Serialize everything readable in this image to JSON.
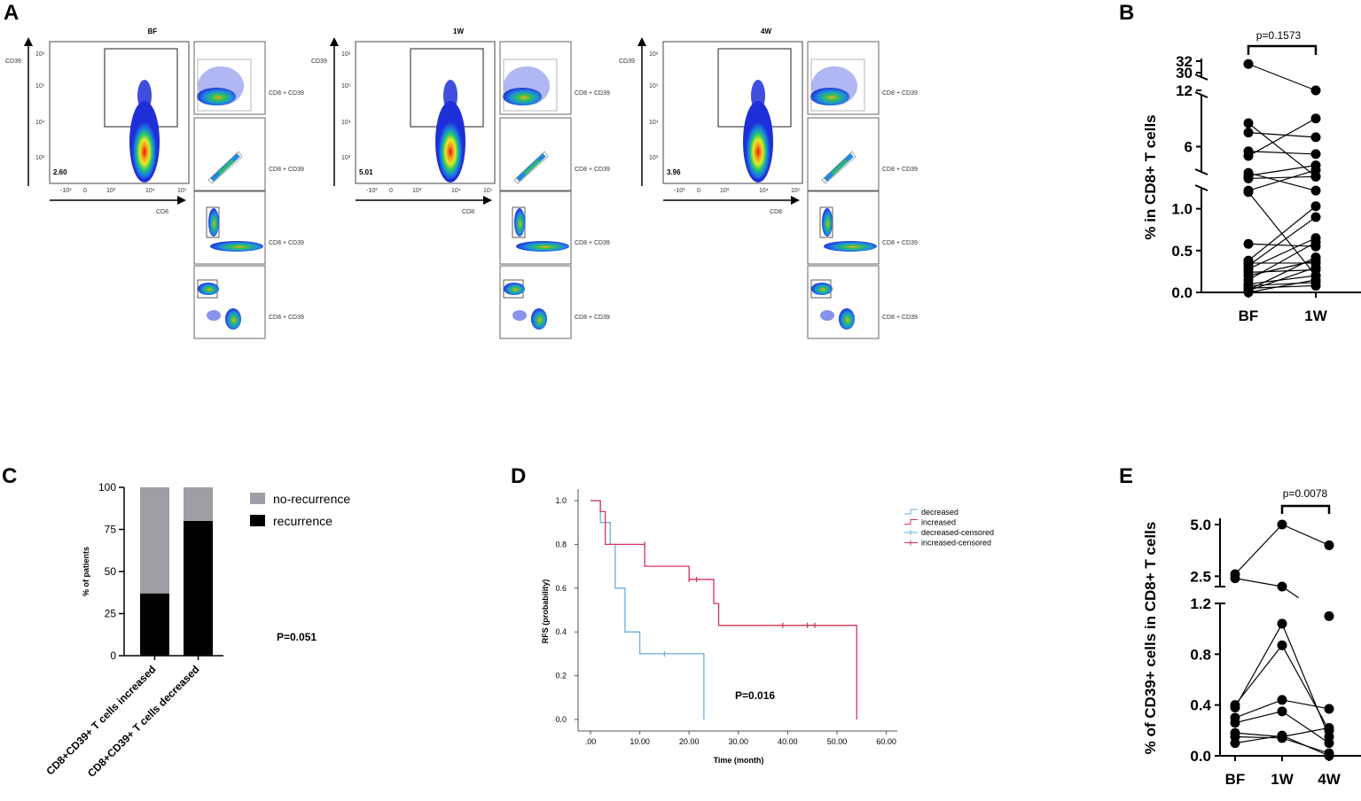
{
  "panel_labels": {
    "a": "A",
    "b": "B",
    "c": "C",
    "d": "D",
    "e": "E"
  },
  "icons": [
    "flow-cytometry-density-plot",
    "gate-rectangle"
  ],
  "colors": {
    "red": "#d6335c",
    "blue": "#6aaee0",
    "gray": "#9e9ea4",
    "black": "#000000",
    "density_blue": "#1f2fd8"
  },
  "chart_data": [
    {
      "id": "A",
      "type": "flow-cytometry",
      "y_label": "CD39",
      "x_label": "CD8",
      "axis_tick_labels": [
        "10³",
        "10⁴",
        "10⁵",
        "10⁶",
        "-10³",
        "0"
      ],
      "plots": [
        {
          "title": "BF",
          "gate_value": "2.60"
        },
        {
          "title": "1W",
          "gate_value": "5.01"
        },
        {
          "title": "4W",
          "gate_value": "3.96"
        }
      ]
    },
    {
      "id": "B",
      "type": "scatter",
      "ylabel": "% in CD8+ T cells",
      "categories": [
        "BF",
        "1W"
      ],
      "y_ticks": [
        "0.0",
        "0.5",
        "1.0",
        "6",
        "12",
        "30",
        "32"
      ],
      "pvalue": "p=0.1573",
      "pairs": [
        [
          31.5,
          12.0
        ],
        [
          8.5,
          2.8
        ],
        [
          7.5,
          7.0
        ],
        [
          5.5,
          5.2
        ],
        [
          5.0,
          9.0
        ],
        [
          3.2,
          1.3
        ],
        [
          2.9,
          4.0
        ],
        [
          2.6,
          2.8
        ],
        [
          1.3,
          3.5
        ],
        [
          1.2,
          0.2
        ],
        [
          0.58,
          0.55
        ],
        [
          0.38,
          1.03
        ],
        [
          0.35,
          0.35
        ],
        [
          0.32,
          0.9
        ],
        [
          0.28,
          0.65
        ],
        [
          0.24,
          0.27
        ],
        [
          0.2,
          0.38
        ],
        [
          0.15,
          0.6
        ],
        [
          0.1,
          0.2
        ],
        [
          0.08,
          0.12
        ],
        [
          0.05,
          0.08
        ],
        [
          0.03,
          0.42
        ],
        [
          0.02,
          0.3
        ],
        [
          0.0,
          0.15
        ]
      ]
    },
    {
      "id": "C",
      "type": "bar",
      "categories": [
        "CD8+CD39+ T cells increased",
        "CD8+CD39+ T cells decreased"
      ],
      "series": [
        {
          "name": "recurrence",
          "values": [
            37,
            80
          ]
        },
        {
          "name": "no-recurrence",
          "values": [
            63,
            20
          ]
        }
      ],
      "ylabel": "% of patients",
      "ylim": [
        0,
        100
      ],
      "y_ticks": [
        0,
        25,
        50,
        75,
        100
      ],
      "annotation": "P=0.051"
    },
    {
      "id": "D",
      "type": "line",
      "title": "",
      "xlabel": "Time (month)",
      "ylabel": "RFS (probability)",
      "xlim": [
        0,
        60
      ],
      "ylim": [
        0,
        1
      ],
      "x_ticks": [
        ".00",
        "10.00",
        "20.00",
        "30.00",
        "40.00",
        "50.00",
        "60.00"
      ],
      "y_ticks": [
        "0.0",
        "0.2",
        "0.4",
        "0.6",
        "0.8",
        "1.0"
      ],
      "legend": [
        "decreased",
        "increased",
        "decreased-censored",
        "increased-censored"
      ],
      "annotation": "P=0.016",
      "series": [
        {
          "name": "decreased",
          "steps": [
            [
              0,
              1.0
            ],
            [
              2,
              0.9
            ],
            [
              4,
              0.8
            ],
            [
              5,
              0.6
            ],
            [
              7,
              0.4
            ],
            [
              10,
              0.3
            ],
            [
              23,
              0.0
            ]
          ],
          "end": 23,
          "censored": [
            [
              15,
              0.3
            ]
          ]
        },
        {
          "name": "increased",
          "steps": [
            [
              0,
              1.0
            ],
            [
              2,
              0.95
            ],
            [
              3,
              0.8
            ],
            [
              11,
              0.7
            ],
            [
              20,
              0.64
            ],
            [
              25,
              0.53
            ],
            [
              26,
              0.43
            ],
            [
              54,
              0.0
            ]
          ],
          "end": 54,
          "censored": [
            [
              11,
              0.8
            ],
            [
              20,
              0.64
            ],
            [
              21.5,
              0.64
            ],
            [
              39,
              0.43
            ],
            [
              44,
              0.43
            ],
            [
              45.5,
              0.43
            ]
          ]
        }
      ]
    },
    {
      "id": "E",
      "type": "scatter",
      "ylabel": "% of CD39+ cells in CD8+ T cells",
      "categories": [
        "BF",
        "1W",
        "4W"
      ],
      "y_ticks": [
        "0.0",
        "0.4",
        "0.8",
        "1.2",
        "2.5",
        "5.0"
      ],
      "pvalue": "p=0.0078",
      "subjects": [
        [
          2.6,
          5.0,
          4.0
        ],
        [
          2.4,
          2.0,
          1.1
        ],
        [
          0.38,
          1.04,
          0.15
        ],
        [
          0.4,
          0.87,
          0.2
        ],
        [
          0.3,
          0.44,
          0.37
        ],
        [
          0.26,
          0.35,
          0.1
        ],
        [
          0.18,
          0.15,
          0.22
        ],
        [
          0.15,
          0.14,
          0.02
        ],
        [
          0.1,
          0.16,
          0.0
        ]
      ]
    }
  ]
}
